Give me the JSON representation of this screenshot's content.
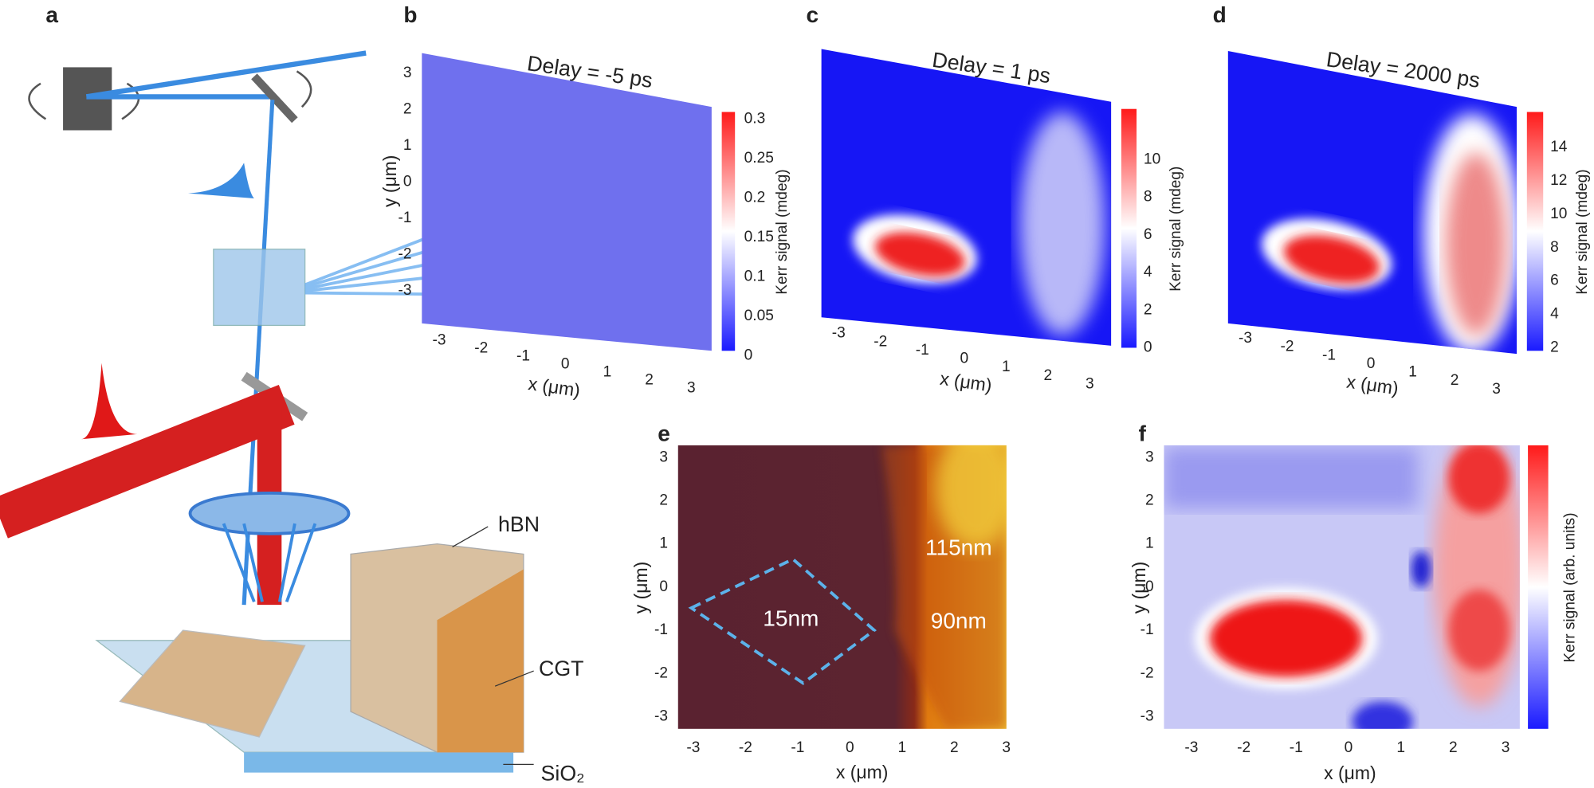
{
  "panels": {
    "a": {
      "label": "a",
      "annotations": [
        "hBN",
        "CGT",
        "SiO₂"
      ]
    },
    "b": {
      "label": "b",
      "title": "Delay = -5 ps",
      "xlabel": "x (μm)",
      "ylabel": "y (μm)",
      "xticks": [
        "-3",
        "-2",
        "-1",
        "0",
        "1",
        "2",
        "3"
      ],
      "yticks": [
        "3",
        "2",
        "1",
        "0",
        "-1",
        "-2",
        "-3"
      ],
      "colorbar_label": "Kerr signal (mdeg)",
      "colorbar_ticks": [
        "0.3",
        "0.25",
        "0.2",
        "0.15",
        "0.1",
        "0.05",
        "0"
      ]
    },
    "c": {
      "label": "c",
      "title": "Delay = 1 ps",
      "xlabel": "x (μm)",
      "xticks": [
        "-3",
        "-2",
        "-1",
        "0",
        "1",
        "2",
        "3"
      ],
      "colorbar_label": "Kerr signal (mdeg)",
      "colorbar_ticks": [
        "10",
        "8",
        "6",
        "4",
        "2",
        "0"
      ]
    },
    "d": {
      "label": "d",
      "title": "Delay = 2000 ps",
      "xlabel": "x (μm)",
      "xticks": [
        "-3",
        "-2",
        "-1",
        "0",
        "1",
        "2",
        "3"
      ],
      "colorbar_label": "Kerr signal (mdeg)",
      "colorbar_ticks": [
        "14",
        "12",
        "10",
        "8",
        "6",
        "4",
        "2"
      ]
    },
    "e": {
      "label": "e",
      "xlabel": "x (μm)",
      "ylabel": "y (μm)",
      "xticks": [
        "-3",
        "-2",
        "-1",
        "0",
        "1",
        "2",
        "3"
      ],
      "yticks": [
        "3",
        "2",
        "1",
        "0",
        "-1",
        "-2",
        "-3"
      ],
      "annotations": [
        "15nm",
        "115nm",
        "90nm"
      ]
    },
    "f": {
      "label": "f",
      "xlabel": "x (μm)",
      "ylabel": "y (μm)",
      "xticks": [
        "-3",
        "-2",
        "-1",
        "0",
        "1",
        "2",
        "3"
      ],
      "yticks": [
        "3",
        "2",
        "1",
        "0",
        "-1",
        "-2",
        "-3"
      ],
      "colorbar_label": "Kerr signal (arb. units)"
    }
  }
}
